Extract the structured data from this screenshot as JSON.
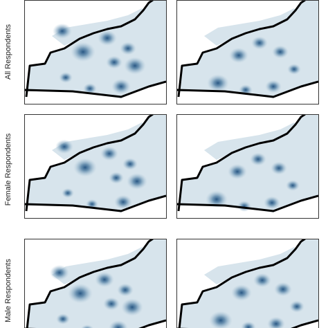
{
  "rows": [
    {
      "label": "All Respondents"
    },
    {
      "label": "Female Respondents"
    },
    {
      "label": "Male Respondents"
    }
  ]
}
